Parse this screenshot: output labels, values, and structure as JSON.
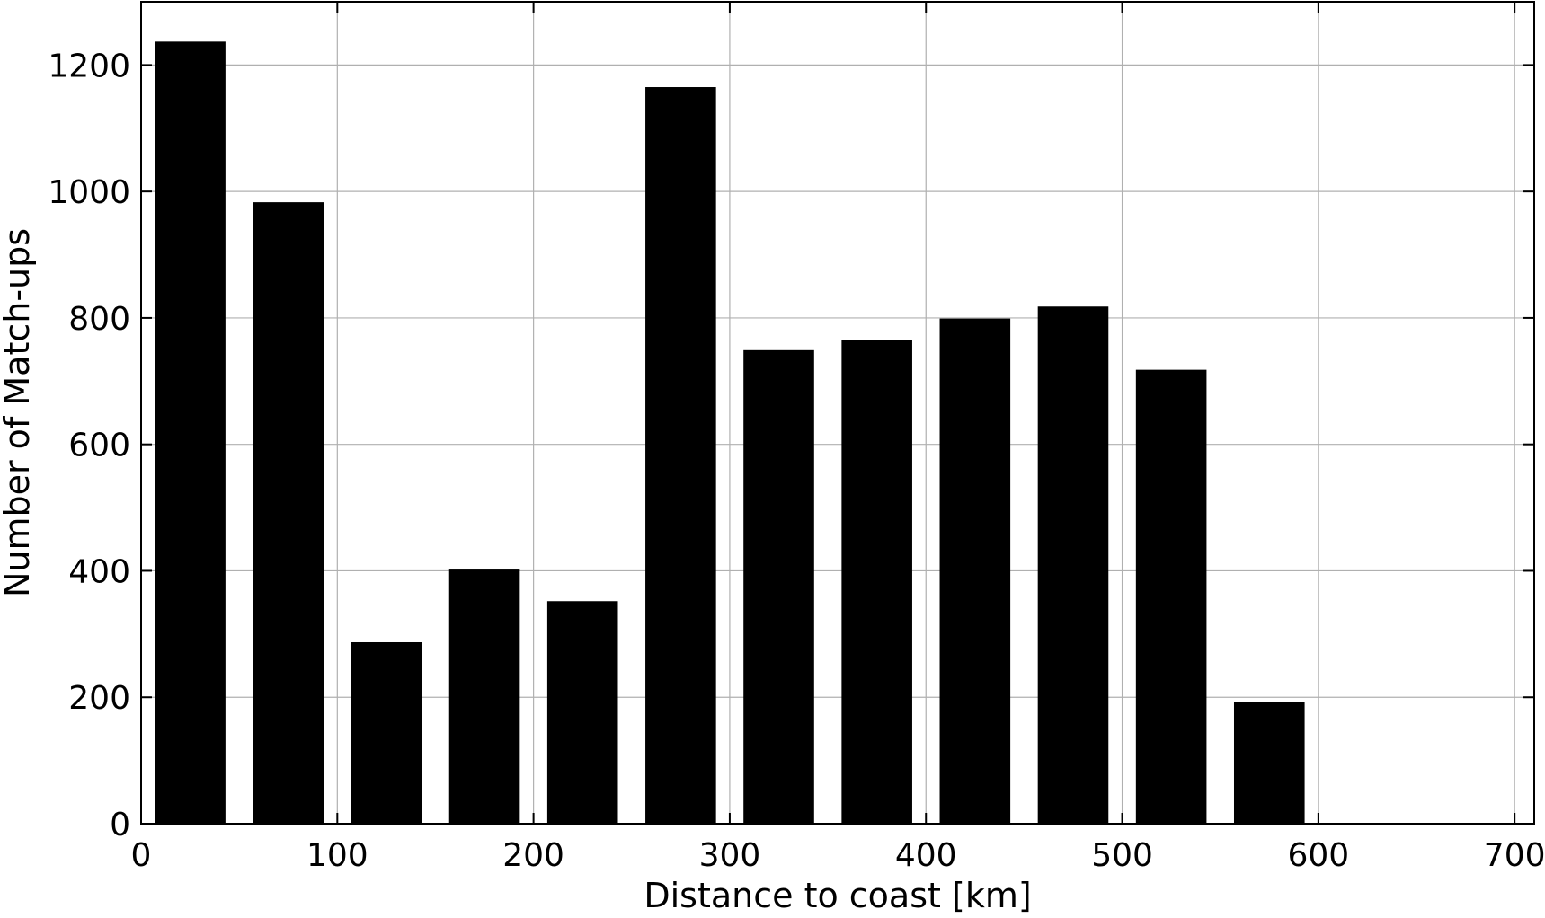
{
  "chart_data": {
    "type": "bar",
    "xlabel": "Distance to coast [km]",
    "ylabel": "Number of Match-ups",
    "xlim": [
      0,
      710
    ],
    "ylim": [
      0,
      1300
    ],
    "xticks": [
      0,
      100,
      200,
      300,
      400,
      500,
      600,
      700
    ],
    "yticks": [
      0,
      200,
      400,
      600,
      800,
      1000,
      1200
    ],
    "grid": true,
    "legend": "none",
    "bar_color": "#000000",
    "bins": [
      {
        "x0": 7,
        "x1": 43,
        "value": 1237
      },
      {
        "x0": 57,
        "x1": 93,
        "value": 983
      },
      {
        "x0": 107,
        "x1": 143,
        "value": 287
      },
      {
        "x0": 157,
        "x1": 193,
        "value": 402
      },
      {
        "x0": 207,
        "x1": 243,
        "value": 352
      },
      {
        "x0": 257,
        "x1": 293,
        "value": 1165
      },
      {
        "x0": 307,
        "x1": 343,
        "value": 749
      },
      {
        "x0": 357,
        "x1": 393,
        "value": 765
      },
      {
        "x0": 407,
        "x1": 443,
        "value": 799
      },
      {
        "x0": 457,
        "x1": 493,
        "value": 818
      },
      {
        "x0": 507,
        "x1": 543,
        "value": 718
      },
      {
        "x0": 557,
        "x1": 593,
        "value": 193
      }
    ]
  }
}
